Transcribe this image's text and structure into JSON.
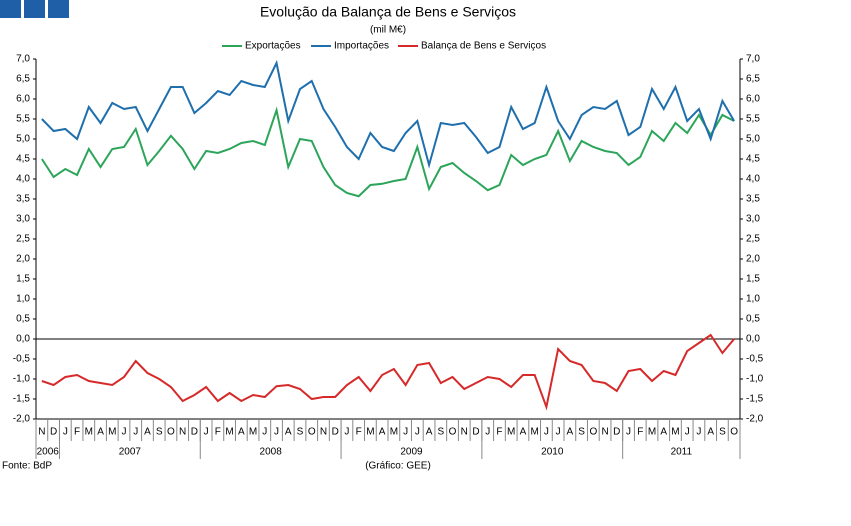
{
  "chart_data": {
    "type": "line",
    "title": "Evolução da Balança de Bens e Serviços",
    "subtitle": "(mil M€)",
    "source": "Fonte: BdP",
    "credit": "(Gráfico: GEE)",
    "categories": [
      "N",
      "D",
      "J",
      "F",
      "M",
      "A",
      "M",
      "J",
      "J",
      "A",
      "S",
      "O",
      "N",
      "D",
      "J",
      "F",
      "M",
      "A",
      "M",
      "J",
      "J",
      "A",
      "S",
      "O",
      "N",
      "D",
      "J",
      "F",
      "M",
      "A",
      "M",
      "J",
      "J",
      "A",
      "S",
      "O",
      "N",
      "D",
      "J",
      "F",
      "M",
      "A",
      "M",
      "J",
      "J",
      "A",
      "S",
      "O",
      "N",
      "D",
      "J",
      "F",
      "M",
      "A",
      "M",
      "J",
      "J",
      "A",
      "S",
      "O"
    ],
    "years": [
      {
        "label": "2006",
        "months": 2
      },
      {
        "label": "2007",
        "months": 12
      },
      {
        "label": "2008",
        "months": 12
      },
      {
        "label": "2009",
        "months": 12
      },
      {
        "label": "2010",
        "months": 12
      },
      {
        "label": "2011",
        "months": 10
      }
    ],
    "ylim": [
      -2,
      7
    ],
    "yticks": [
      {
        "value": -2,
        "label": "-2,0"
      },
      {
        "value": -1.5,
        "label": "-1,5"
      },
      {
        "value": -1,
        "label": "-1,0"
      },
      {
        "value": -0.5,
        "label": "-0,5"
      },
      {
        "value": 0,
        "label": "0,0"
      },
      {
        "value": 0.5,
        "label": "0,5"
      },
      {
        "value": 1,
        "label": "1,0"
      },
      {
        "value": 1.5,
        "label": "1,5"
      },
      {
        "value": 2,
        "label": "2,0"
      },
      {
        "value": 2.5,
        "label": "2,5"
      },
      {
        "value": 3,
        "label": "3,0"
      },
      {
        "value": 3.5,
        "label": "3,5"
      },
      {
        "value": 4,
        "label": "4,0"
      },
      {
        "value": 4.5,
        "label": "4,5"
      },
      {
        "value": 5,
        "label": "5,0"
      },
      {
        "value": 5.5,
        "label": "5,5"
      },
      {
        "value": 6,
        "label": "6,0"
      },
      {
        "value": 6.5,
        "label": "6,5"
      },
      {
        "value": 7,
        "label": "7,0"
      }
    ],
    "grid": false,
    "series": [
      {
        "name": "Exportações",
        "color": "#2ca55a",
        "values": [
          4.5,
          4.05,
          4.25,
          4.1,
          4.75,
          4.3,
          4.75,
          4.8,
          5.25,
          4.35,
          4.7,
          5.08,
          4.75,
          4.25,
          4.7,
          4.65,
          4.75,
          4.9,
          4.95,
          4.85,
          5.72,
          4.3,
          5.0,
          4.95,
          4.3,
          3.85,
          3.65,
          3.57,
          3.85,
          3.88,
          3.95,
          4.0,
          4.8,
          3.75,
          4.3,
          4.4,
          4.15,
          3.95,
          3.72,
          3.85,
          4.6,
          4.35,
          4.5,
          4.6,
          5.2,
          4.45,
          4.95,
          4.8,
          4.7,
          4.65,
          4.35,
          4.55,
          5.2,
          4.95,
          5.4,
          5.15,
          5.6,
          5.1,
          5.6,
          5.45
        ]
      },
      {
        "name": "Importações",
        "color": "#1f6fad",
        "values": [
          5.5,
          5.2,
          5.25,
          5.0,
          5.8,
          5.4,
          5.9,
          5.75,
          5.8,
          5.2,
          5.75,
          6.3,
          6.3,
          5.65,
          5.9,
          6.2,
          6.1,
          6.45,
          6.35,
          6.3,
          6.9,
          5.45,
          6.25,
          6.45,
          5.75,
          5.3,
          4.8,
          4.5,
          5.15,
          4.8,
          4.7,
          5.15,
          5.45,
          4.35,
          5.4,
          5.35,
          5.4,
          5.05,
          4.65,
          4.8,
          5.8,
          5.25,
          5.4,
          6.3,
          5.45,
          5.0,
          5.6,
          5.8,
          5.75,
          5.95,
          5.1,
          5.3,
          6.25,
          5.75,
          6.3,
          5.45,
          5.75,
          5.0,
          5.95,
          5.45
        ]
      },
      {
        "name": "Balança de Bens e Serviços",
        "color": "#d62a2a",
        "values": [
          -1.05,
          -1.15,
          -0.95,
          -0.9,
          -1.05,
          -1.1,
          -1.15,
          -0.95,
          -0.55,
          -0.85,
          -1.0,
          -1.2,
          -1.55,
          -1.4,
          -1.2,
          -1.55,
          -1.35,
          -1.55,
          -1.4,
          -1.45,
          -1.18,
          -1.15,
          -1.25,
          -1.5,
          -1.45,
          -1.45,
          -1.15,
          -0.95,
          -1.3,
          -0.9,
          -0.75,
          -1.15,
          -0.65,
          -0.6,
          -1.1,
          -0.95,
          -1.25,
          -1.1,
          -0.95,
          -1.0,
          -1.2,
          -0.9,
          -0.9,
          -1.7,
          -0.25,
          -0.55,
          -0.65,
          -1.05,
          -1.1,
          -1.3,
          -0.8,
          -0.75,
          -1.05,
          -0.8,
          -0.9,
          -0.3,
          -0.1,
          0.1,
          -0.35,
          0.0
        ]
      }
    ]
  }
}
